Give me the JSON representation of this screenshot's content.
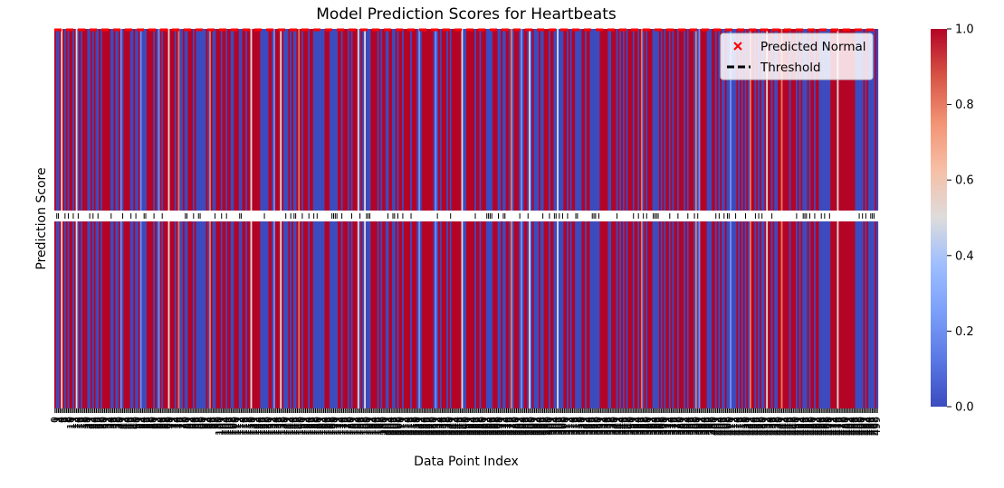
{
  "chart_data": {
    "type": "heatmap",
    "title": "Model Prediction Scores for Heartbeats",
    "xlabel": "Data Point Index",
    "ylabel": "Prediction Score",
    "colormap": "coolwarm",
    "colorbar": {
      "range": [
        0,
        1
      ],
      "ticks": [
        "0.0",
        "0.2",
        "0.4",
        "0.6",
        "0.8",
        "1.0"
      ],
      "low_color": "#3b4cc0",
      "mid_color": "#dddddd",
      "high_color": "#b40426"
    },
    "n_points": 500,
    "x_tick_labels_overlapping": true,
    "threshold": 1.0,
    "legend": {
      "placement": "top-right",
      "entries": [
        {
          "label": "Predicted Normal",
          "marker": "x",
          "color": "#ff0000"
        },
        {
          "label": "Threshold",
          "marker": "dashed-line",
          "color": "#000000"
        }
      ]
    }
  }
}
